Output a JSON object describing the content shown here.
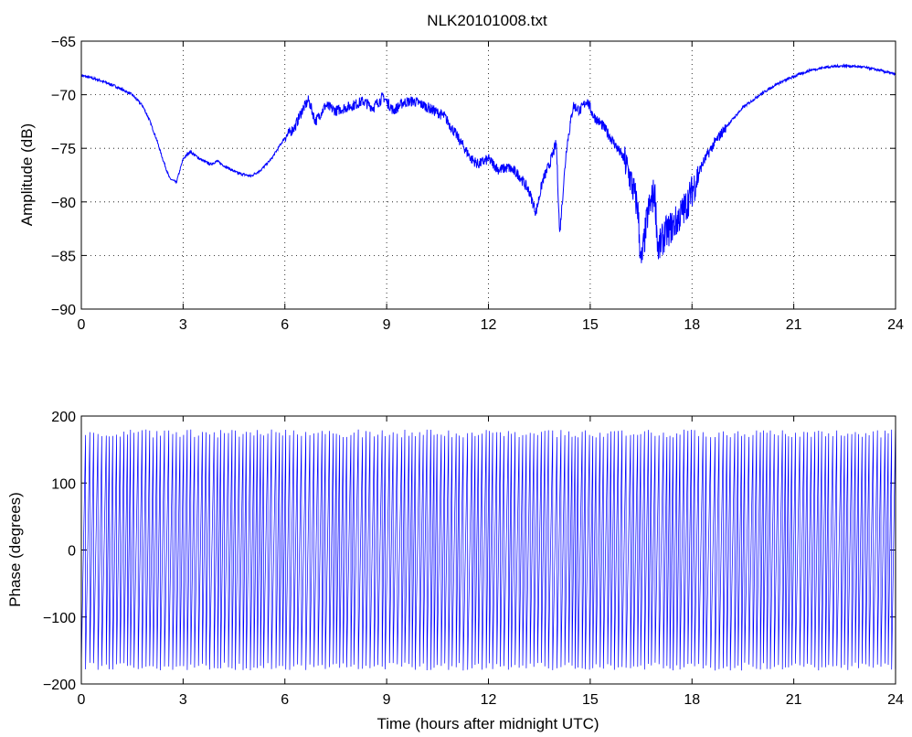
{
  "title": "NLK20101008.txt",
  "xlabel": "Time (hours after midnight UTC)",
  "line_color": "#0000ff",
  "chart_data": [
    {
      "type": "line",
      "title": "NLK20101008.txt",
      "ylabel": "Amplitude (dB)",
      "xlabel": "",
      "xlim": [
        0,
        24
      ],
      "ylim": [
        -90,
        -65
      ],
      "xticks": [
        "0",
        "3",
        "6",
        "9",
        "12",
        "15",
        "18",
        "21",
        "24"
      ],
      "yticks": [
        "−65",
        "−70",
        "−75",
        "−80",
        "−85",
        "−90"
      ],
      "grid": true,
      "x": [
        0,
        0.5,
        1.0,
        1.5,
        1.8,
        2.0,
        2.2,
        2.4,
        2.6,
        2.8,
        3.0,
        3.2,
        3.5,
        3.8,
        4.0,
        4.3,
        4.6,
        5.0,
        5.3,
        5.6,
        6.0,
        6.3,
        6.5,
        6.7,
        6.9,
        7.2,
        7.5,
        7.8,
        8.0,
        8.3,
        8.6,
        8.9,
        9.2,
        9.5,
        9.8,
        10.1,
        10.4,
        10.7,
        11.0,
        11.3,
        11.5,
        11.7,
        12.0,
        12.3,
        12.6,
        12.9,
        13.2,
        13.4,
        13.6,
        13.8,
        14.0,
        14.1,
        14.3,
        14.5,
        14.7,
        14.9,
        15.1,
        15.4,
        15.7,
        16.0,
        16.2,
        16.4,
        16.5,
        16.7,
        16.9,
        17.0,
        17.2,
        17.5,
        17.8,
        18.0,
        18.3,
        18.6,
        19.0,
        19.5,
        20.0,
        20.5,
        21.0,
        21.5,
        22.0,
        22.5,
        23.0,
        23.5,
        24.0
      ],
      "y": [
        -68.2,
        -68.6,
        -69.2,
        -70.0,
        -71.0,
        -72.3,
        -74.0,
        -76.0,
        -77.8,
        -78.2,
        -76.0,
        -75.3,
        -76.0,
        -76.5,
        -76.2,
        -76.8,
        -77.3,
        -77.6,
        -77.0,
        -76.0,
        -74.0,
        -73.0,
        -71.5,
        -70.5,
        -72.5,
        -71.0,
        -71.5,
        -71.2,
        -71.0,
        -70.6,
        -71.2,
        -70.2,
        -71.5,
        -70.7,
        -70.6,
        -71.0,
        -71.5,
        -72.0,
        -73.5,
        -75.0,
        -76.0,
        -76.5,
        -76.0,
        -77.0,
        -76.8,
        -77.5,
        -79.0,
        -81.0,
        -78.0,
        -76.5,
        -74.5,
        -83.0,
        -75.0,
        -71.0,
        -71.5,
        -70.5,
        -72.0,
        -73.0,
        -74.5,
        -76.0,
        -78.0,
        -80.5,
        -86.0,
        -81.0,
        -79.0,
        -84.5,
        -83.0,
        -82.0,
        -80.5,
        -79.0,
        -76.5,
        -74.8,
        -73.0,
        -71.2,
        -70.0,
        -69.0,
        -68.3,
        -67.7,
        -67.4,
        -67.3,
        -67.4,
        -67.7,
        -68.1
      ]
    },
    {
      "type": "line",
      "title": "",
      "ylabel": "Phase (degrees)",
      "xlabel": "Time (hours after midnight UTC)",
      "xlim": [
        0,
        24
      ],
      "ylim": [
        -200,
        200
      ],
      "xticks": [
        "0",
        "3",
        "6",
        "9",
        "12",
        "15",
        "18",
        "21",
        "24"
      ],
      "yticks": [
        "200",
        "100",
        "0",
        "−100",
        "−200"
      ],
      "grid": false,
      "description_values": {
        "phase_wrap_range": [
          -180,
          180
        ],
        "wrap_period_hours": 0.11
      }
    }
  ]
}
